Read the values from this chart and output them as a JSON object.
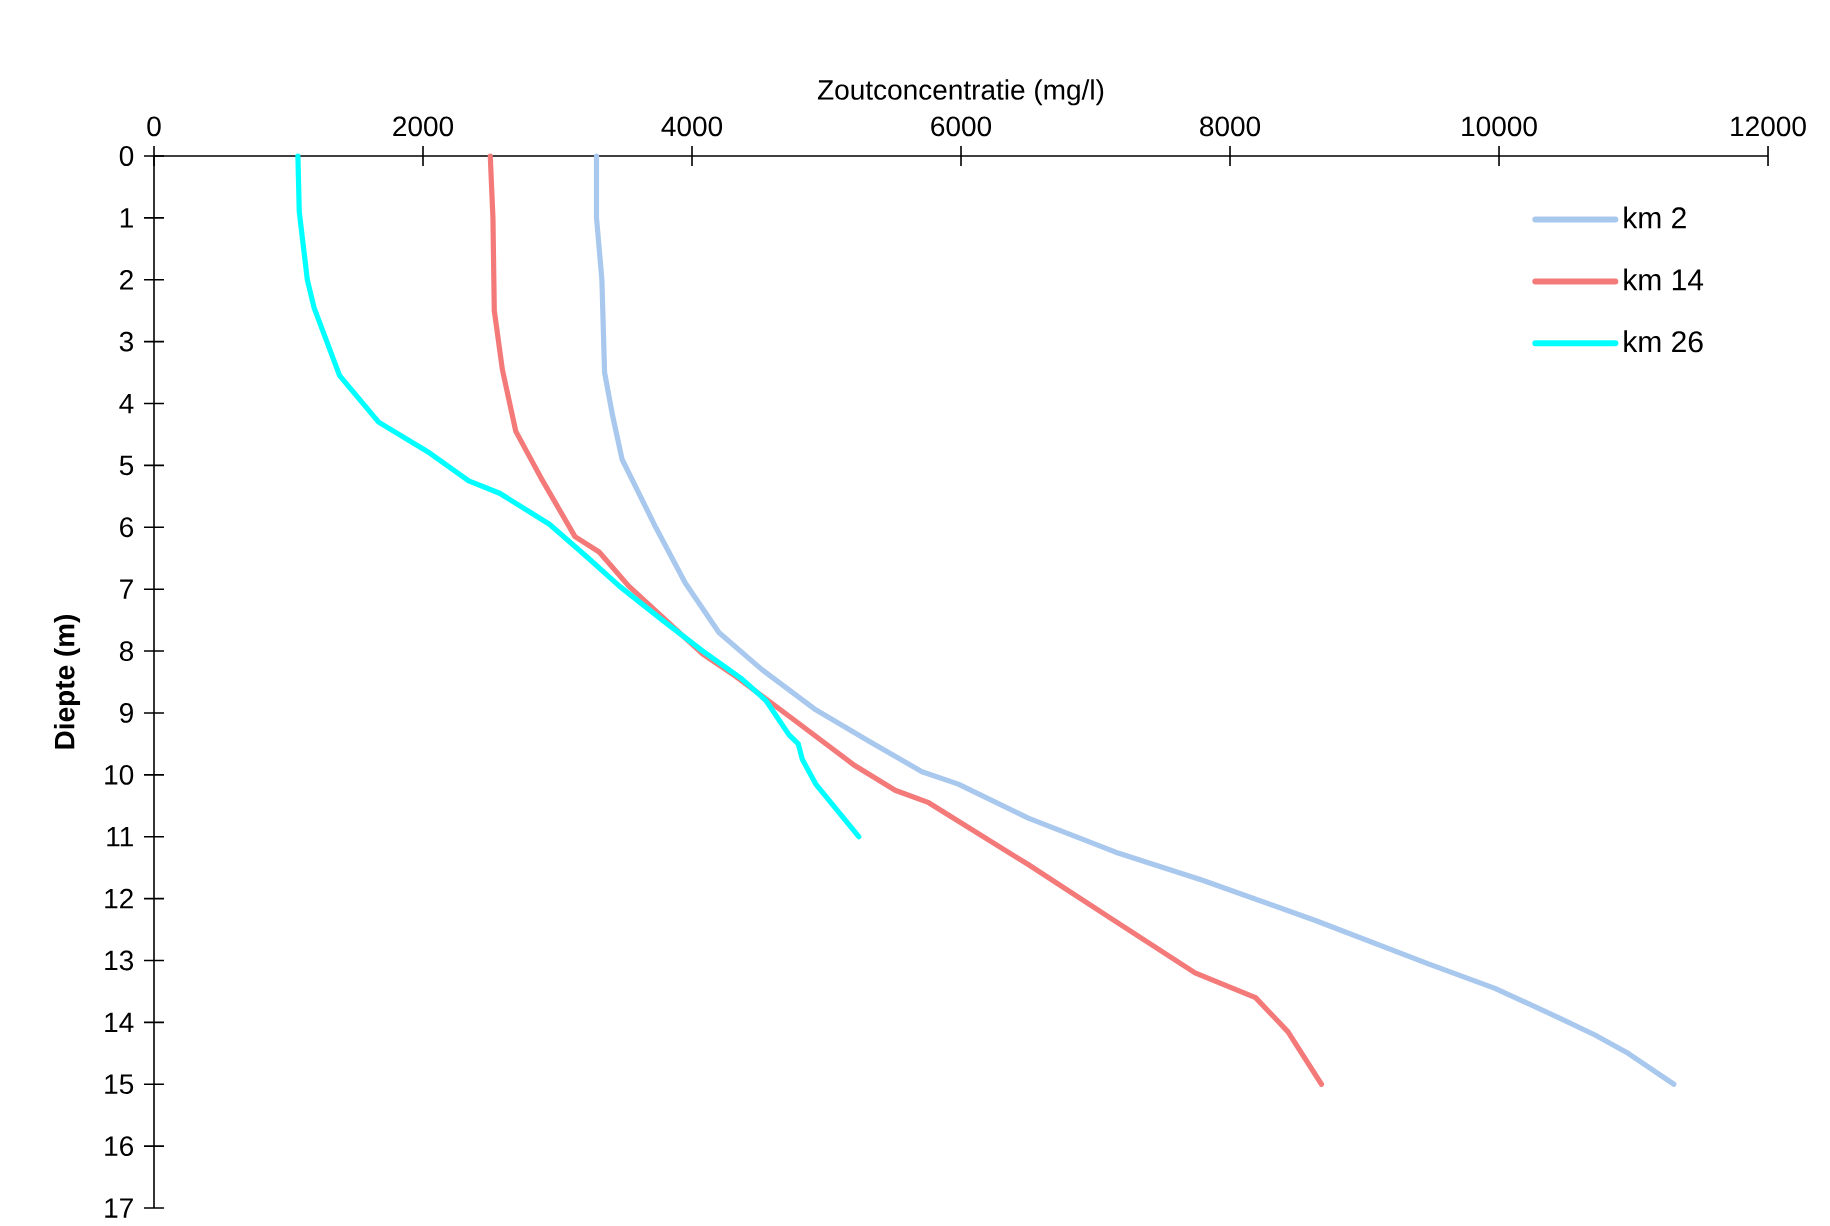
{
  "chart_data": {
    "type": "line",
    "xlabel": "Zoutconcentratie (mg/l)",
    "ylabel": "Diepte (m)",
    "xlim": [
      0,
      12000
    ],
    "xticks": [
      0,
      2000,
      4000,
      6000,
      8000,
      10000,
      12000
    ],
    "ylim": [
      17,
      0
    ],
    "yticks": [
      0,
      1,
      2,
      3,
      4,
      5,
      6,
      7,
      8,
      9,
      10,
      11,
      12,
      13,
      14,
      15,
      16,
      17
    ],
    "grid": false,
    "legend": "top right",
    "marker": "none",
    "line_style": "solid",
    "series": [
      {
        "name": "km 2",
        "color": "#a9c8ee",
        "x": [
          3290,
          3290,
          3330,
          3350,
          3410,
          3480,
          3730,
          3950,
          4200,
          4520,
          4920,
          5310,
          5710,
          5980,
          6500,
          7150,
          7790,
          8630,
          9470,
          9970,
          10470,
          10710,
          10960,
          11300
        ],
        "values": [
          0,
          1,
          2,
          3.5,
          4.2,
          4.9,
          6,
          6.9,
          7.7,
          8.3,
          8.95,
          9.45,
          9.95,
          10.15,
          10.7,
          11.25,
          11.7,
          12.35,
          13.05,
          13.45,
          13.95,
          14.2,
          14.5,
          15
        ]
      },
      {
        "name": "km 14",
        "color": "#f47a7a",
        "x": [
          2500,
          2520,
          2530,
          2590,
          2690,
          2890,
          3130,
          3310,
          3530,
          3880,
          4080,
          4320,
          4720,
          5210,
          5510,
          5760,
          6500,
          7100,
          7740,
          8190,
          8430,
          8680
        ],
        "values": [
          0,
          1,
          2.5,
          3.45,
          4.45,
          5.25,
          6.15,
          6.4,
          6.95,
          7.65,
          8.05,
          8.4,
          9.05,
          9.85,
          10.25,
          10.45,
          11.45,
          12.3,
          13.2,
          13.6,
          14.15,
          15
        ]
      },
      {
        "name": "km 26",
        "color": "#00ffff",
        "x": [
          1070,
          1080,
          1140,
          1190,
          1380,
          1670,
          2050,
          2340,
          2570,
          2940,
          3230,
          3460,
          3780,
          4080,
          4370,
          4550,
          4720,
          4790,
          4820,
          4920,
          5240
        ],
        "values": [
          0,
          0.9,
          2,
          2.45,
          3.55,
          4.3,
          4.8,
          5.25,
          5.45,
          5.95,
          6.5,
          6.95,
          7.5,
          8,
          8.45,
          8.8,
          9.35,
          9.5,
          9.75,
          10.15,
          11
        ]
      }
    ]
  }
}
